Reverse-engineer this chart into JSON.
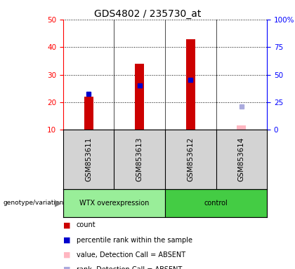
{
  "title": "GDS4802 / 235730_at",
  "samples": [
    "GSM853611",
    "GSM853613",
    "GSM853612",
    "GSM853614"
  ],
  "group_names": [
    "WTX overexpression",
    "control"
  ],
  "count_present": [
    22.0,
    34.0,
    43.0,
    null
  ],
  "count_absent": [
    null,
    null,
    null,
    11.5
  ],
  "percentile_present": [
    23.0,
    26.0,
    28.0,
    null
  ],
  "percentile_absent": [
    null,
    null,
    null,
    18.5
  ],
  "ylim_left": [
    10,
    50
  ],
  "ylim_right": [
    0,
    100
  ],
  "yticks_left": [
    10,
    20,
    30,
    40,
    50
  ],
  "yticks_right": [
    0,
    25,
    50,
    75,
    100
  ],
  "bar_color_present": "#CC0000",
  "bar_color_absent": "#FFB6C1",
  "percentile_color_present": "#0000CC",
  "percentile_color_absent": "#AAAADD",
  "bar_width": 0.18,
  "title_fontsize": 10,
  "tick_fontsize": 7.5,
  "sample_fontsize": 7.5,
  "legend_fontsize": 7,
  "background_color": "#ffffff",
  "plot_bg_color": "#ffffff",
  "gray_bg_color": "#d3d3d3",
  "green_group_color_1": "#99EE99",
  "green_group_color_2": "#44CC44"
}
